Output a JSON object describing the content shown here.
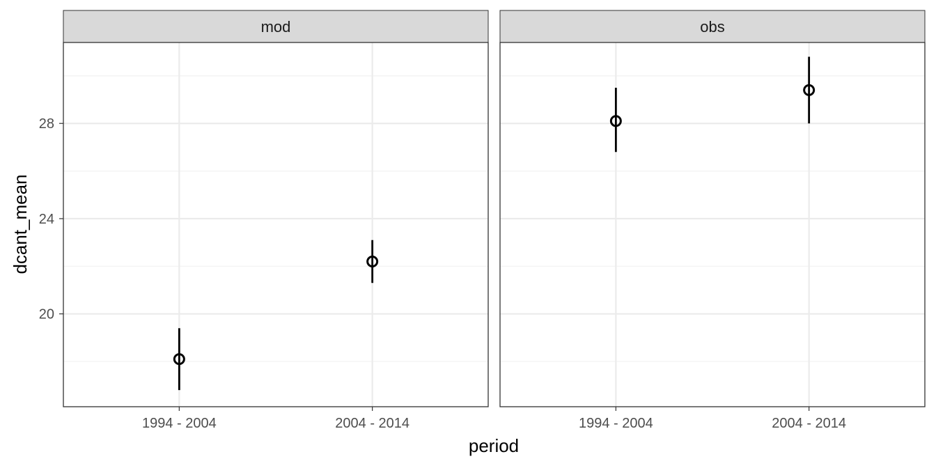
{
  "chart_data": {
    "type": "scatter",
    "subtype": "pointrange",
    "xlabel": "period",
    "ylabel": "dcant_mean",
    "categories": [
      "1994 - 2004",
      "2004 - 2014"
    ],
    "ylim": [
      16.1,
      31.4
    ],
    "yticks": [
      20,
      24,
      28
    ],
    "grid": true,
    "panels": [
      {
        "name": "mod",
        "points": [
          {
            "x": "1994 - 2004",
            "y": 18.1,
            "ymin": 16.8,
            "ymax": 19.4
          },
          {
            "x": "2004 - 2014",
            "y": 22.2,
            "ymin": 21.3,
            "ymax": 23.1
          }
        ]
      },
      {
        "name": "obs",
        "points": [
          {
            "x": "1994 - 2004",
            "y": 28.1,
            "ymin": 26.8,
            "ymax": 29.5
          },
          {
            "x": "2004 - 2014",
            "y": 29.4,
            "ymin": 28.0,
            "ymax": 30.8
          }
        ]
      }
    ]
  }
}
